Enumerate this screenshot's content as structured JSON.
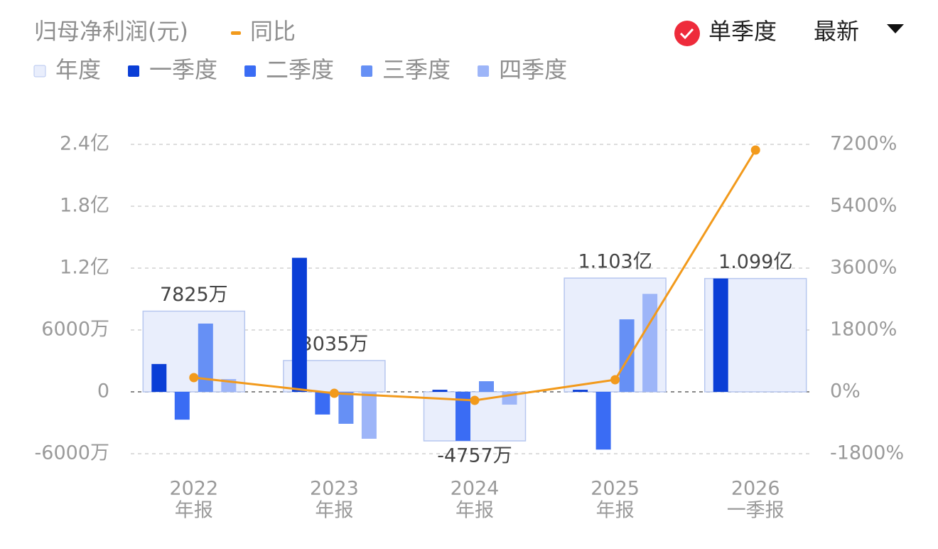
{
  "chart_data": {
    "type": "bar",
    "title": "归母净利润(元)",
    "controls": {
      "single_quarter": "单季度",
      "latest": "最新"
    },
    "categories": [
      "2022",
      "2023",
      "2024",
      "2025",
      "2026"
    ],
    "category_sublabels": [
      "年报",
      "年报",
      "年报",
      "年报",
      "一季报"
    ],
    "ylim": [
      -60000000,
      240000000
    ],
    "yticks": [
      {
        "value": -60000000,
        "label": "-6000万"
      },
      {
        "value": 0,
        "label": "0"
      },
      {
        "value": 60000000,
        "label": "6000万"
      },
      {
        "value": 120000000,
        "label": "1.2亿"
      },
      {
        "value": 180000000,
        "label": "1.8亿"
      },
      {
        "value": 240000000,
        "label": "2.4亿"
      }
    ],
    "y2lim": [
      -1800,
      7200
    ],
    "y2ticks": [
      {
        "value": -1800,
        "label": "-1800%"
      },
      {
        "value": 0,
        "label": "0%"
      },
      {
        "value": 1800,
        "label": "1800%"
      },
      {
        "value": 3600,
        "label": "3600%"
      },
      {
        "value": 5400,
        "label": "5400%"
      },
      {
        "value": 7200,
        "label": "7200%"
      }
    ],
    "grid": true,
    "series": [
      {
        "name": "年度",
        "type": "bar",
        "role": "annual",
        "color": "#e9eefc",
        "values": [
          78250000,
          30350000,
          -47570000,
          110300000,
          109900000
        ],
        "value_labels": [
          "7825万",
          "3035万",
          "-4757万",
          "1.103亿",
          "1.099亿"
        ]
      },
      {
        "name": "一季度",
        "type": "bar",
        "color": "#0a3ed6",
        "values": [
          27000000,
          130000000,
          2000000,
          2000000,
          109900000
        ]
      },
      {
        "name": "二季度",
        "type": "bar",
        "color": "#3a6cf4",
        "values": [
          -27000000,
          -22000000,
          -47500000,
          -56000000,
          null
        ]
      },
      {
        "name": "三季度",
        "type": "bar",
        "color": "#6690f5",
        "values": [
          66200000,
          -31000000,
          10300000,
          70300000,
          null
        ]
      },
      {
        "name": "四季度",
        "type": "bar",
        "color": "#9db5f8",
        "values": [
          12400000,
          -45500000,
          -12400000,
          95000000,
          null
        ]
      },
      {
        "name": "同比",
        "type": "line",
        "axis": "y2",
        "color": "#f29a1c",
        "values": [
          414,
          -41,
          -248,
          352,
          7034
        ]
      }
    ]
  }
}
